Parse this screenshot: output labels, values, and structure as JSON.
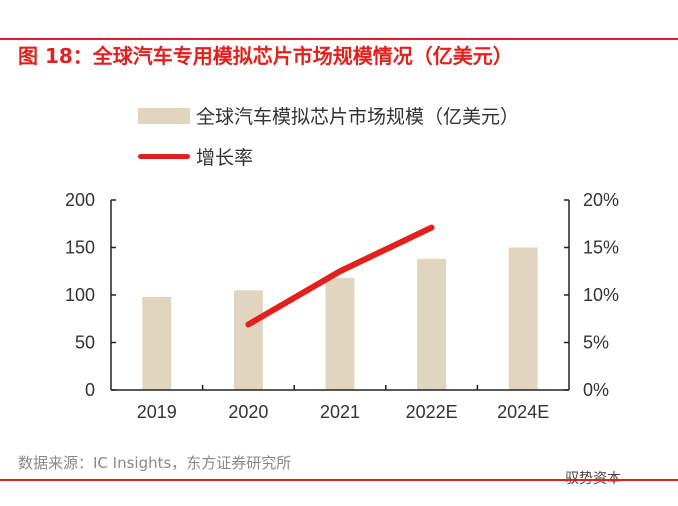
{
  "title": "图 18：全球汽车专用模拟芯片市场规模情况（亿美元）",
  "footer": "数据来源：IC Insights，东方证券研究所",
  "watermark": "驭势资本",
  "colors": {
    "accent": "#e3201b",
    "bar": "#e0d6bf"
  },
  "chart_data": {
    "type": "bar",
    "categories": [
      "2019",
      "2020",
      "2021",
      "2022E",
      "2024E"
    ],
    "series": [
      {
        "name": "全球汽车模拟芯片市场规模（亿美元）",
        "type": "bar",
        "axis": "left",
        "values": [
          98,
          105,
          118,
          138,
          150
        ]
      },
      {
        "name": "增长率",
        "type": "line",
        "axis": "right",
        "values": [
          null,
          6.9,
          12.5,
          17.1,
          null
        ]
      }
    ],
    "y_left": {
      "range": [
        0,
        200
      ],
      "ticks": [
        "0",
        "50",
        "100",
        "150",
        "200"
      ]
    },
    "y_right": {
      "range": [
        0,
        20
      ],
      "ticks": [
        "0%",
        "5%",
        "10%",
        "15%",
        "20%"
      ]
    },
    "legend_position": "top",
    "grid": false
  }
}
